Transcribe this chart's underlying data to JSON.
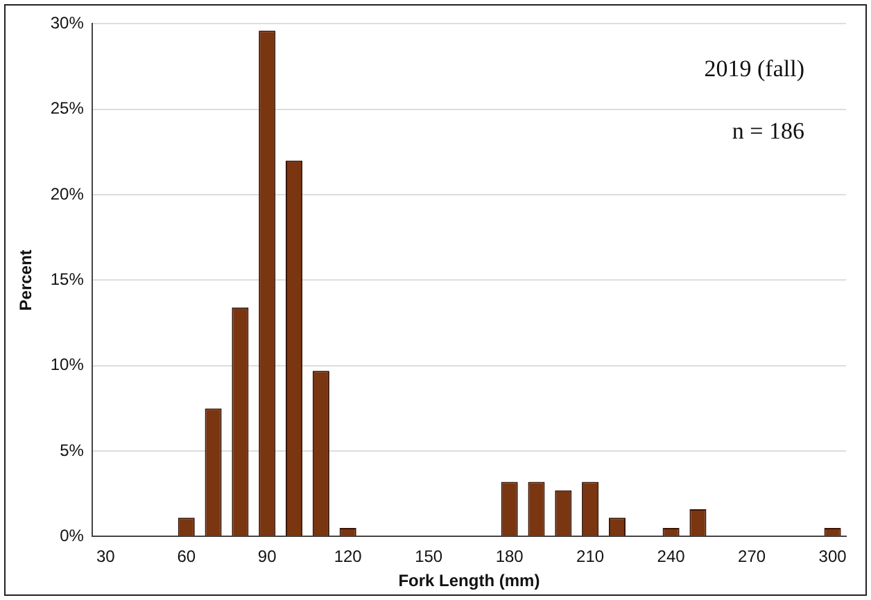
{
  "chart_data": {
    "type": "bar",
    "xlabel": "Fork Length (mm)",
    "ylabel": "Percent",
    "categories": [
      "30",
      null,
      null,
      "60",
      null,
      null,
      "90",
      null,
      null,
      "120",
      null,
      null,
      "150",
      null,
      null,
      "180",
      null,
      null,
      "210",
      null,
      null,
      "240",
      null,
      null,
      "270",
      null,
      null,
      "300"
    ],
    "values": [
      0,
      0,
      0,
      1.1,
      7.5,
      13.4,
      29.6,
      22.0,
      9.7,
      0.5,
      0,
      0,
      0,
      0,
      0,
      3.2,
      3.2,
      2.7,
      3.2,
      1.1,
      0,
      0.5,
      1.6,
      0,
      0,
      0,
      0,
      0.5
    ],
    "color": "#7a3511",
    "ylim": [
      0,
      30
    ],
    "yticks": [
      {
        "value": 0,
        "label": "0%"
      },
      {
        "value": 5,
        "label": "5%"
      },
      {
        "value": 10,
        "label": "10%"
      },
      {
        "value": 15,
        "label": "15%"
      },
      {
        "value": 20,
        "label": "20%"
      },
      {
        "value": 25,
        "label": "25%"
      },
      {
        "value": 30,
        "label": "30%"
      }
    ],
    "grid": "y",
    "legend": false,
    "annotations": [
      "2019 (fall)",
      "n = 186"
    ]
  }
}
